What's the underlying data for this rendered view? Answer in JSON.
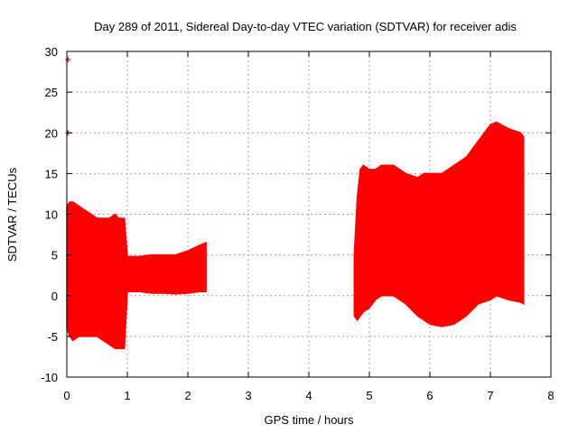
{
  "chart_data": {
    "type": "area",
    "title": "Day 289 of 2011, Sidereal Day-to-day VTEC variation (SDTVAR) for receiver adis",
    "xlabel": "GPS time / hours",
    "ylabel": "SDTVAR / TECUs",
    "xlim": [
      0,
      8
    ],
    "ylim": [
      -10,
      30
    ],
    "xticks": [
      "0",
      "1",
      "2",
      "3",
      "4",
      "5",
      "6",
      "7",
      "8"
    ],
    "yticks": [
      "-10",
      "-5",
      "0",
      "5",
      "10",
      "15",
      "20",
      "25",
      "30"
    ],
    "grid": true,
    "legend": "none",
    "color": "#ff0000",
    "series": [
      {
        "x": [
          0.0,
          0.05,
          0.1,
          0.2,
          0.3,
          0.4,
          0.5,
          0.6,
          0.7,
          0.8,
          0.85,
          0.9,
          0.95,
          1.0,
          1.2,
          1.4,
          1.6,
          1.8,
          2.0,
          2.2,
          2.3
        ],
        "upper": [
          11,
          11.5,
          11.5,
          11,
          10.5,
          10,
          9.5,
          9.5,
          9.5,
          10,
          9.5,
          9.5,
          9.5,
          4.8,
          4.8,
          5,
          5,
          5,
          5.5,
          6.2,
          6.5
        ],
        "lower": [
          -4,
          -5,
          -5.5,
          -5,
          -5,
          -5,
          -5,
          -5.5,
          -6,
          -6.5,
          -6.5,
          -6.5,
          -6.5,
          0.5,
          0.5,
          0.3,
          0.3,
          0.2,
          0.3,
          0.5,
          0.5
        ]
      },
      {
        "x": [
          4.75,
          4.8,
          4.85,
          4.9,
          5.0,
          5.1,
          5.2,
          5.4,
          5.6,
          5.8,
          5.9,
          6.0,
          6.2,
          6.4,
          6.6,
          6.8,
          7.0,
          7.1,
          7.3,
          7.5,
          7.55
        ],
        "upper": [
          5,
          12,
          15.5,
          16,
          15.5,
          15.5,
          16,
          16,
          15,
          14.5,
          15,
          15,
          15,
          16,
          17,
          19,
          21,
          21.3,
          20.5,
          20,
          19.5
        ],
        "lower": [
          -2.5,
          -3,
          -2.5,
          -2,
          -1.5,
          -0.5,
          0,
          0,
          -1,
          -2.5,
          -3,
          -3.5,
          -3.8,
          -3.5,
          -2.5,
          -1,
          -0.5,
          0,
          -0.5,
          -0.8,
          -1
        ]
      }
    ],
    "outliers": [
      {
        "x": 0.02,
        "y": 29
      },
      {
        "x": 0.02,
        "y": 20
      }
    ]
  }
}
